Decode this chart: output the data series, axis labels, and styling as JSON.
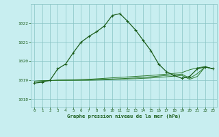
{
  "title": "Graphe pression niveau de la mer (hPa)",
  "background_color": "#c8eef0",
  "grid_color": "#88c4c4",
  "line_color_main": "#1a5c1a",
  "line_color_flat": "#2d7a2d",
  "xlim": [
    -0.5,
    23.5
  ],
  "ylim": [
    1017.6,
    1023.0
  ],
  "yticks": [
    1018,
    1019,
    1020,
    1021,
    1022
  ],
  "xticks": [
    0,
    1,
    2,
    3,
    4,
    5,
    6,
    7,
    8,
    9,
    10,
    11,
    12,
    13,
    14,
    15,
    16,
    17,
    18,
    19,
    20,
    21,
    22,
    23
  ],
  "main_series": [
    [
      0,
      1018.85
    ],
    [
      1,
      1018.9
    ],
    [
      2,
      1019.0
    ],
    [
      3,
      1019.6
    ],
    [
      4,
      1019.85
    ],
    [
      5,
      1020.45
    ],
    [
      6,
      1021.0
    ],
    [
      7,
      1021.3
    ],
    [
      8,
      1021.55
    ],
    [
      9,
      1021.85
    ],
    [
      10,
      1022.4
    ],
    [
      11,
      1022.5
    ],
    [
      12,
      1022.1
    ],
    [
      13,
      1021.65
    ],
    [
      14,
      1021.1
    ],
    [
      15,
      1020.55
    ],
    [
      16,
      1019.85
    ],
    [
      17,
      1019.45
    ],
    [
      18,
      1019.25
    ],
    [
      19,
      1019.1
    ],
    [
      20,
      1019.2
    ],
    [
      21,
      1019.6
    ],
    [
      22,
      1019.7
    ],
    [
      23,
      1019.6
    ]
  ],
  "flat_series_list": [
    [
      [
        0,
        1018.95
      ],
      [
        3,
        1019.0
      ],
      [
        5,
        1019.02
      ],
      [
        7,
        1019.05
      ],
      [
        9,
        1019.1
      ],
      [
        11,
        1019.15
      ],
      [
        13,
        1019.2
      ],
      [
        15,
        1019.25
      ],
      [
        17,
        1019.32
      ],
      [
        19,
        1019.4
      ],
      [
        20,
        1019.55
      ],
      [
        21,
        1019.65
      ],
      [
        22,
        1019.72
      ],
      [
        23,
        1019.6
      ]
    ],
    [
      [
        0,
        1018.95
      ],
      [
        3,
        1019.0
      ],
      [
        5,
        1019.0
      ],
      [
        7,
        1019.02
      ],
      [
        9,
        1019.05
      ],
      [
        11,
        1019.08
      ],
      [
        13,
        1019.12
      ],
      [
        15,
        1019.18
      ],
      [
        17,
        1019.25
      ],
      [
        19,
        1019.32
      ],
      [
        20,
        1019.1
      ],
      [
        21,
        1019.35
      ],
      [
        22,
        1019.7
      ],
      [
        23,
        1019.6
      ]
    ],
    [
      [
        0,
        1018.95
      ],
      [
        3,
        1019.0
      ],
      [
        5,
        1019.0
      ],
      [
        7,
        1019.0
      ],
      [
        9,
        1019.02
      ],
      [
        11,
        1019.05
      ],
      [
        13,
        1019.08
      ],
      [
        15,
        1019.12
      ],
      [
        17,
        1019.18
      ],
      [
        19,
        1019.25
      ],
      [
        20,
        1019.05
      ],
      [
        21,
        1019.2
      ],
      [
        22,
        1019.7
      ],
      [
        23,
        1019.6
      ]
    ]
  ]
}
